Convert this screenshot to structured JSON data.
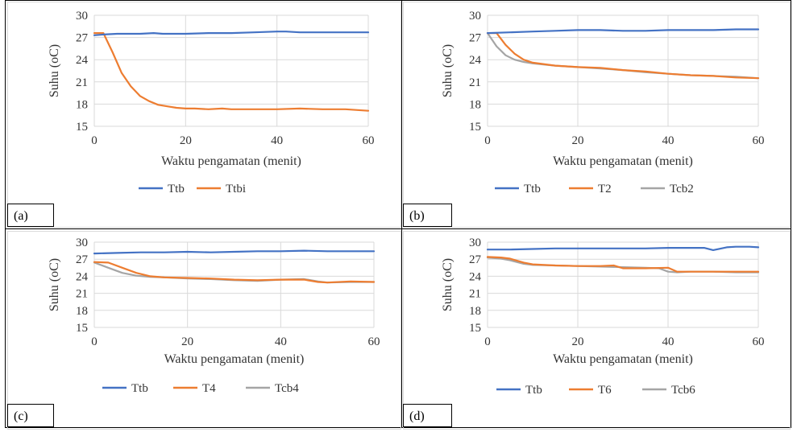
{
  "colors": {
    "blue": "#4472C4",
    "orange": "#ED7D31",
    "gray": "#A5A5A5"
  },
  "chart_data": [
    {
      "type": "line",
      "panel_label": "(a)",
      "xlabel": "Waktu pengamatan (menit)",
      "ylabel": "Suhu (oC)",
      "xlim": [
        0,
        60
      ],
      "ylim": [
        15,
        30
      ],
      "xticks": [
        "0",
        "20",
        "40",
        "60"
      ],
      "yticks": [
        "15",
        "18",
        "21",
        "24",
        "27",
        "30"
      ],
      "grid": true,
      "legend": "bottom",
      "series": [
        {
          "name": "Ttb",
          "color": "#4472C4",
          "x": [
            0,
            2,
            5,
            10,
            13,
            15,
            20,
            25,
            30,
            35,
            40,
            42,
            45,
            50,
            55,
            60
          ],
          "y": [
            27.3,
            27.4,
            27.5,
            27.5,
            27.6,
            27.5,
            27.5,
            27.6,
            27.6,
            27.7,
            27.8,
            27.8,
            27.7,
            27.7,
            27.7,
            27.7
          ]
        },
        {
          "name": "Ttbi",
          "color": "#ED7D31",
          "x": [
            0,
            2,
            4,
            6,
            8,
            10,
            12,
            14,
            16,
            18,
            20,
            22,
            25,
            28,
            30,
            35,
            40,
            45,
            50,
            55,
            60
          ],
          "y": [
            27.6,
            27.6,
            25.0,
            22.2,
            20.4,
            19.1,
            18.4,
            17.9,
            17.7,
            17.5,
            17.4,
            17.4,
            17.3,
            17.4,
            17.3,
            17.3,
            17.3,
            17.4,
            17.3,
            17.3,
            17.1
          ]
        }
      ]
    },
    {
      "type": "line",
      "panel_label": "(b)",
      "xlabel": "Waktu pengamatan (menit)",
      "ylabel": "Suhu (oC)",
      "xlim": [
        0,
        60
      ],
      "ylim": [
        15,
        30
      ],
      "xticks": [
        "0",
        "20",
        "40",
        "60"
      ],
      "yticks": [
        "15",
        "18",
        "21",
        "24",
        "27",
        "30"
      ],
      "grid": true,
      "legend": "bottom",
      "series": [
        {
          "name": "Ttb",
          "color": "#4472C4",
          "x": [
            0,
            5,
            10,
            15,
            20,
            25,
            30,
            35,
            40,
            45,
            50,
            55,
            60
          ],
          "y": [
            27.6,
            27.7,
            27.8,
            27.9,
            28.0,
            28.0,
            27.9,
            27.9,
            28.0,
            28.0,
            28.0,
            28.1,
            28.1
          ]
        },
        {
          "name": "T2",
          "color": "#ED7D31",
          "x": [
            0,
            2,
            4,
            6,
            8,
            10,
            15,
            20,
            25,
            30,
            35,
            40,
            45,
            50,
            55,
            60
          ],
          "y": [
            27.6,
            27.6,
            26.0,
            24.8,
            24.0,
            23.6,
            23.2,
            23.0,
            22.9,
            22.6,
            22.4,
            22.1,
            21.9,
            21.8,
            21.6,
            21.5
          ]
        },
        {
          "name": "Tcb2",
          "color": "#A5A5A5",
          "x": [
            0,
            2,
            4,
            6,
            8,
            10,
            15,
            20,
            25,
            30,
            35,
            40,
            45,
            50,
            55,
            60
          ],
          "y": [
            27.6,
            25.8,
            24.6,
            24.0,
            23.7,
            23.5,
            23.2,
            23.0,
            22.8,
            22.6,
            22.3,
            22.1,
            21.9,
            21.8,
            21.7,
            21.5
          ]
        }
      ]
    },
    {
      "type": "line",
      "panel_label": "(c)",
      "xlabel": "Waktu pengamatan (menit)",
      "ylabel": "Suhu (oC)",
      "xlim": [
        0,
        60
      ],
      "ylim": [
        15,
        30
      ],
      "xticks": [
        "0",
        "20",
        "40",
        "60"
      ],
      "yticks": [
        "15",
        "18",
        "21",
        "24",
        "27",
        "30"
      ],
      "grid": true,
      "legend": "bottom",
      "series": [
        {
          "name": "Ttb",
          "color": "#4472C4",
          "x": [
            0,
            5,
            10,
            15,
            20,
            25,
            30,
            35,
            40,
            45,
            50,
            55,
            60
          ],
          "y": [
            28.0,
            28.1,
            28.2,
            28.2,
            28.3,
            28.2,
            28.3,
            28.4,
            28.4,
            28.5,
            28.4,
            28.4,
            28.4
          ]
        },
        {
          "name": "T4",
          "color": "#ED7D31",
          "x": [
            0,
            3,
            6,
            9,
            12,
            15,
            20,
            25,
            30,
            35,
            40,
            45,
            48,
            50,
            55,
            60
          ],
          "y": [
            26.5,
            26.4,
            25.5,
            24.6,
            24.0,
            23.8,
            23.7,
            23.6,
            23.4,
            23.3,
            23.4,
            23.4,
            23.0,
            22.9,
            23.1,
            23.0
          ]
        },
        {
          "name": "Tcb4",
          "color": "#A5A5A5",
          "x": [
            0,
            3,
            6,
            9,
            12,
            15,
            20,
            25,
            30,
            35,
            40,
            45,
            48,
            50,
            55,
            60
          ],
          "y": [
            26.4,
            25.5,
            24.6,
            24.1,
            23.9,
            23.8,
            23.6,
            23.5,
            23.3,
            23.2,
            23.4,
            23.5,
            23.1,
            22.9,
            23.0,
            23.0
          ]
        }
      ]
    },
    {
      "type": "line",
      "panel_label": "(d)",
      "xlabel": "Waktu pengamatan (menit)",
      "ylabel": "Suhu (oC)",
      "xlim": [
        0,
        60
      ],
      "ylim": [
        15,
        30
      ],
      "xticks": [
        "0",
        "20",
        "40",
        "60"
      ],
      "yticks": [
        "15",
        "18",
        "21",
        "24",
        "27",
        "30"
      ],
      "grid": true,
      "legend": "bottom",
      "series": [
        {
          "name": "Ttb",
          "color": "#4472C4",
          "x": [
            0,
            5,
            10,
            15,
            20,
            25,
            30,
            35,
            40,
            45,
            48,
            50,
            53,
            55,
            58,
            60
          ],
          "y": [
            28.7,
            28.7,
            28.8,
            28.9,
            28.9,
            28.9,
            28.9,
            28.9,
            29.0,
            29.0,
            29.0,
            28.6,
            29.1,
            29.2,
            29.2,
            29.1
          ]
        },
        {
          "name": "T6",
          "color": "#ED7D31",
          "x": [
            0,
            3,
            5,
            8,
            10,
            15,
            20,
            25,
            28,
            30,
            35,
            40,
            42,
            45,
            50,
            55,
            60
          ],
          "y": [
            27.4,
            27.3,
            27.1,
            26.4,
            26.1,
            25.9,
            25.8,
            25.8,
            25.9,
            25.4,
            25.4,
            25.5,
            24.8,
            24.8,
            24.8,
            24.8,
            24.8
          ]
        },
        {
          "name": "Tcb6",
          "color": "#A5A5A5",
          "x": [
            0,
            3,
            5,
            8,
            10,
            15,
            20,
            25,
            30,
            35,
            38,
            40,
            42,
            45,
            50,
            55,
            60
          ],
          "y": [
            27.3,
            27.1,
            26.8,
            26.2,
            26.0,
            25.9,
            25.8,
            25.7,
            25.6,
            25.5,
            25.4,
            24.8,
            24.7,
            24.8,
            24.8,
            24.7,
            24.7
          ]
        }
      ]
    }
  ]
}
